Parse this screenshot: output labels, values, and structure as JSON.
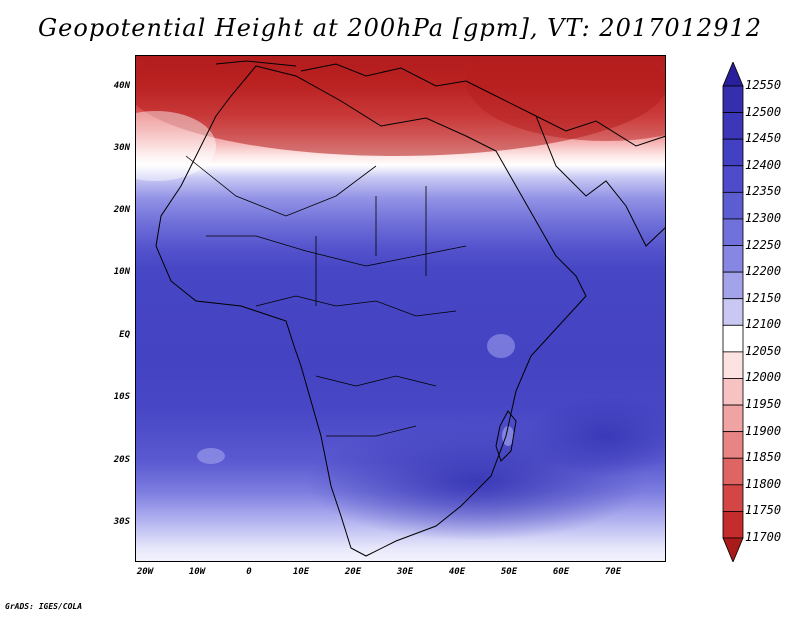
{
  "title": "Geopotential Height at 200hPa [gpm], VT: 2017012912",
  "credit": "GrADS: IGES/COLA",
  "latitude_labels": [
    "40N",
    "30N",
    "20N",
    "10N",
    "EQ",
    "10S",
    "20S",
    "30S"
  ],
  "longitude_labels": [
    "20W",
    "10W",
    "0",
    "10E",
    "20E",
    "30E",
    "40E",
    "50E",
    "60E",
    "70E"
  ],
  "colorbar": {
    "labels": [
      "12550",
      "12500",
      "12450",
      "12400",
      "12350",
      "12300",
      "12250",
      "12200",
      "12150",
      "12100",
      "12050",
      "12000",
      "11950",
      "11900",
      "11850",
      "11800",
      "11750",
      "11700"
    ],
    "colors": [
      "#2a1f9a",
      "#3430ad",
      "#3b37b8",
      "#4240c3",
      "#4e4ccb",
      "#5d5dd2",
      "#7171db",
      "#8686e3",
      "#a3a3ea",
      "#c8c8f2",
      "#ffffff",
      "#fde2e2",
      "#f7c2c2",
      "#f0a3a3",
      "#e88484",
      "#df6464",
      "#d44545",
      "#c52d2d",
      "#a91a1a"
    ]
  },
  "map_colors": {
    "deep_blue": "#4a49c8",
    "dark_blue": "#3d3cbc",
    "light_blue": "#8c8ce6",
    "white": "#ffffff",
    "light_red": "#f2a8a8",
    "dark_red": "#b82020"
  }
}
